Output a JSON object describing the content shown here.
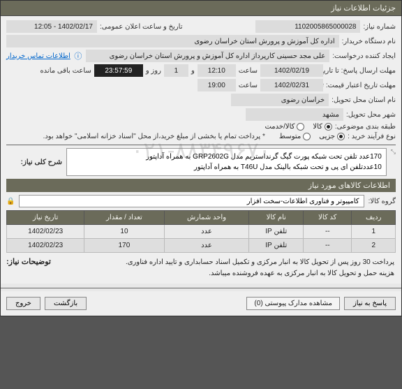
{
  "window": {
    "title": "جزئیات اطلاعات نیاز"
  },
  "form": {
    "need_no_label": "شماره نیاز:",
    "need_no": "1102005865000028",
    "announce_label": "تاریخ و ساعت اعلان عمومی:",
    "announce_value": "1402/02/17 - 12:05",
    "device_label": "نام دستگاه خریدار:",
    "device_value": "اداره کل آموزش و پرورش استان خراسان رضوی",
    "creator_label": "ایجاد کننده درخواست:",
    "creator_value": "علی مجد حسینی کارپرداز اداره کل آموزش و پرورش استان خراسان رضوی",
    "contact_link": "اطلاعات تماس خریدار",
    "deadline_label": "مهلت ارسال پاسخ: تا تاریخ:",
    "deadline_date": "1402/02/19",
    "saat": "ساعت",
    "deadline_time": "12:10",
    "va": "و",
    "deadline_days": "1",
    "rooz_va": "روز و",
    "countdown": "23:57:59",
    "remaining": "ساعت باقی مانده",
    "validity_label": "مهلت تاریخ اعتبار قیمت: تا تاریخ:",
    "validity_date": "1402/02/31",
    "validity_time": "19:00",
    "province_label": "نام استان محل تحویل:",
    "province_value": "خراسان رضوی",
    "city_label": "شهر محل تحویل:",
    "city_value": "مشهد",
    "pack_label": "طبقه بندی موضوعی:",
    "pack_opts": {
      "kala": "کالا",
      "khadamat": "کالا/خدمت"
    },
    "pack_selected": "kala",
    "process_label": "نوع فرآیند خرید :",
    "process_opts": {
      "joz": "جزیی",
      "motevasset": "متوسط"
    },
    "process_selected": "joz",
    "payment_note": "* پرداخت تمام یا بخشی از مبلغ خرید،از محل \"اسناد خزانه اسلامی\" خواهد بود.",
    "desc_label": "شرح کلی نیاز:",
    "desc_text": "170عدد تلفن تحت شبکه پورت گیگ گرنداستریم مدل GRP2602G به همراه آداپتور\n10عددتلفن ای پی و تحت شبکه بالینک مدل T46U به همراه آداپتور"
  },
  "items_section": {
    "title": "اطلاعات کالاهای مورد نیاز",
    "group_label": "گروه کالا:",
    "group_value": "کامپیوتر و فناوری اطلاعات-سخت افزار",
    "columns": [
      "ردیف",
      "کد کالا",
      "نام کالا",
      "واحد شمارش",
      "تعداد / مقدار",
      "تاریخ نیاز"
    ],
    "rows": [
      [
        "1",
        "--",
        "تلفن IP",
        "عدد",
        "10",
        "1402/02/23"
      ],
      [
        "2",
        "--",
        "تلفن IP",
        "عدد",
        "170",
        "1402/02/23"
      ]
    ]
  },
  "notes": {
    "label": "توضیحات نیاز:",
    "line1": "پرداخت 30 روز پس از تحویل کالا به انبار مرکزی و تکمیل اسناد حسابداری و تایید اداره فناوری.",
    "line2": "هزینه حمل و تحویل کالا به انبار مرکزی به عهده فروشنده میباشد."
  },
  "watermark": "۰۲۱-۸۸۳۴۹۶۷۰",
  "buttons": {
    "reply": "پاسخ به نیاز",
    "attachments": "مشاهده مدارک پیوستی",
    "attach_count": "(0)",
    "back": "بازگشت",
    "exit": "خروج"
  }
}
